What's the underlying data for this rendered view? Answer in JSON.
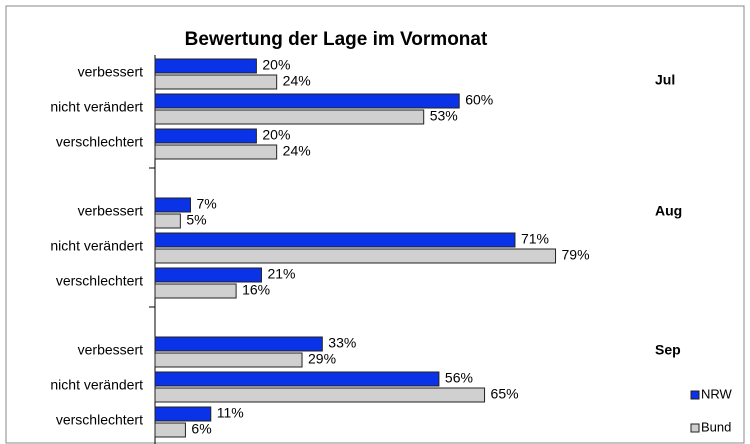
{
  "chart_data": {
    "type": "bar",
    "orientation": "horizontal",
    "title": "Bewertung der Lage im Vormonat",
    "categories": [
      "verbessert",
      "nicht verändert",
      "verschlechtert"
    ],
    "groups": [
      "Jul",
      "Aug",
      "Sep"
    ],
    "series": [
      {
        "name": "NRW",
        "color": "#0a32e6",
        "values": [
          [
            20,
            60,
            20
          ],
          [
            7,
            71,
            21
          ],
          [
            33,
            56,
            11
          ]
        ],
        "value_labels": [
          [
            "20%",
            "60%",
            "20%"
          ],
          [
            "7%",
            "71%",
            "21%"
          ],
          [
            "33%",
            "56%",
            "11%"
          ]
        ]
      },
      {
        "name": "Bund",
        "color": "#d0d0d0",
        "values": [
          [
            24,
            53,
            24
          ],
          [
            5,
            79,
            16
          ],
          [
            29,
            65,
            6
          ]
        ],
        "value_labels": [
          [
            "24%",
            "53%",
            "24%"
          ],
          [
            "5%",
            "79%",
            "16%"
          ],
          [
            "29%",
            "65%",
            "6%"
          ]
        ]
      }
    ],
    "legend": "right"
  }
}
